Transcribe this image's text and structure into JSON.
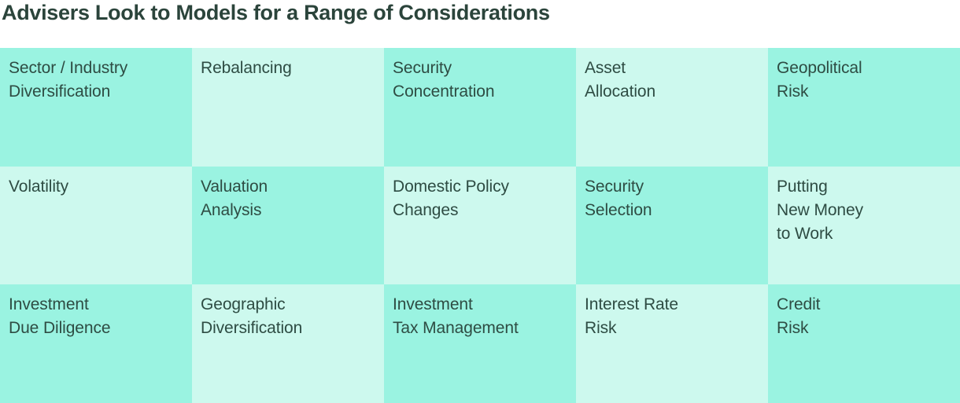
{
  "title": "Advisers Look to Models for a Range of Considerations",
  "colors": {
    "page_bg": "#ffffff",
    "cell_dark": "#9af3e1",
    "cell_light": "#cdf9ee",
    "cell_text": "#2e4c43",
    "title_text": "#2b443b"
  },
  "grid": {
    "rows": [
      {
        "cells": [
          {
            "label": "Sector / Industry\nDiversification"
          },
          {
            "label": "Rebalancing"
          },
          {
            "label": "Security\nConcentration"
          },
          {
            "label": "Asset\nAllocation"
          },
          {
            "label": "Geopolitical\nRisk"
          }
        ]
      },
      {
        "cells": [
          {
            "label": "Volatility"
          },
          {
            "label": "Valuation\nAnalysis"
          },
          {
            "label": "Domestic Policy\nChanges"
          },
          {
            "label": "Security\nSelection"
          },
          {
            "label": "Putting\nNew Money\nto Work"
          }
        ]
      },
      {
        "cells": [
          {
            "label": "Investment\nDue Diligence"
          },
          {
            "label": "Geographic\nDiversification"
          },
          {
            "label": "Investment\nTax Management"
          },
          {
            "label": "Interest Rate\nRisk"
          },
          {
            "label": "Credit\nRisk"
          }
        ]
      }
    ]
  }
}
